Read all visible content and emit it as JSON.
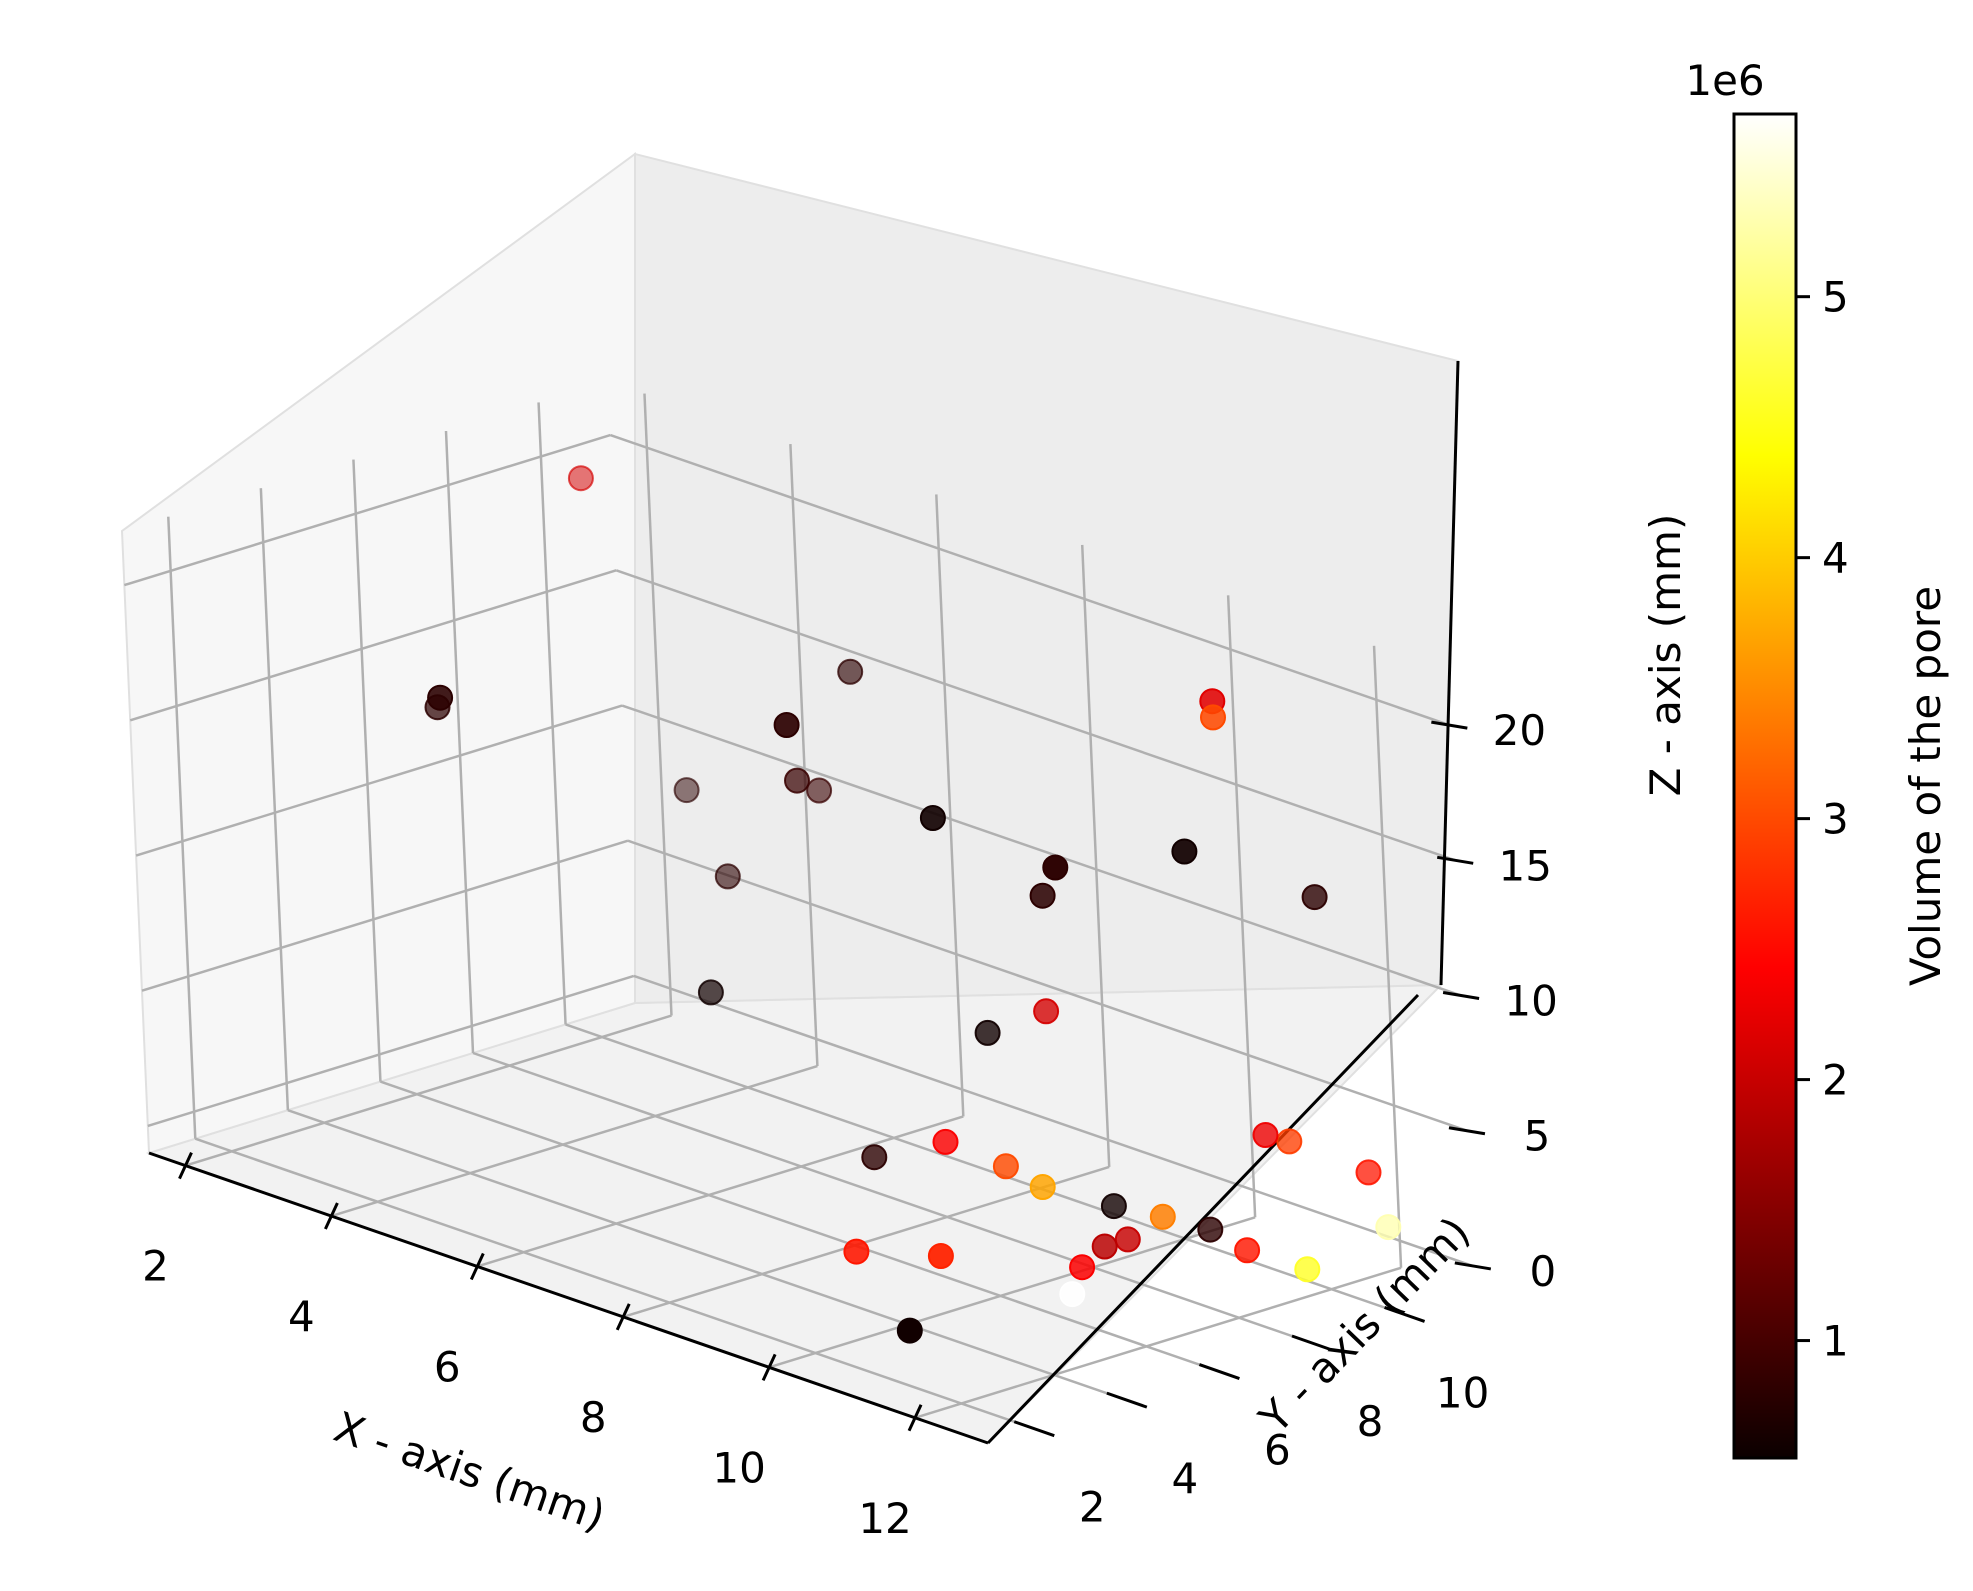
{
  "chart_data": {
    "type": "scatter",
    "projection": "3d",
    "xlabel": "X - axis (mm)",
    "ylabel": "Y - axis (mm)",
    "zlabel": "Z - axis (mm)",
    "xticks": [
      "2",
      "4",
      "6",
      "8",
      "10",
      "12"
    ],
    "yticks": [
      "2",
      "4",
      "6",
      "8",
      "10"
    ],
    "zticks": [
      "0",
      "5",
      "10",
      "15",
      "20"
    ],
    "xlim": [
      1.5,
      13
    ],
    "ylim": [
      1,
      11.5
    ],
    "zlim": [
      -1,
      22
    ],
    "grid": true,
    "colormap": "hot",
    "colorbar": {
      "label": "Volume of the pore",
      "offset_text": "1e6",
      "ticks": [
        "1",
        "2",
        "3",
        "4",
        "5"
      ],
      "tick_values": [
        1,
        2,
        3,
        4,
        5
      ],
      "range": [
        0.55,
        5.7
      ],
      "placement": "right"
    },
    "points": [
      {
        "x": 2.5,
        "y": 9.3,
        "z": 20.5,
        "v": 2.1
      },
      {
        "x": 3.0,
        "y": 10.5,
        "z": 8.8,
        "v": 0.8
      },
      {
        "x": 5.3,
        "y": 9.8,
        "z": 11.3,
        "v": 0.9
      },
      {
        "x": 4.5,
        "y": 9.0,
        "z": 7.8,
        "v": 0.8
      },
      {
        "x": 5.5,
        "y": 7.0,
        "z": 5.5,
        "v": 0.6
      },
      {
        "x": 3.5,
        "y": 4.5,
        "z": 15.5,
        "v": 0.8
      },
      {
        "x": 6.0,
        "y": 9.5,
        "z": 16.5,
        "v": 0.8
      },
      {
        "x": 6.5,
        "y": 7.5,
        "z": 14.0,
        "v": 0.9
      },
      {
        "x": 5.5,
        "y": 1.5,
        "z": 19.3,
        "v": 0.8
      },
      {
        "x": 9.0,
        "y": 3.5,
        "z": 20.5,
        "v": 0.8
      },
      {
        "x": 9.0,
        "y": 7.5,
        "z": 7.0,
        "v": 0.6
      },
      {
        "x": 8.0,
        "y": 6.5,
        "z": 2.0,
        "v": 0.8
      },
      {
        "x": 10.0,
        "y": 8.5,
        "z": 1.0,
        "v": 0.6
      },
      {
        "x": 10.0,
        "y": 5.0,
        "z": 17.2,
        "v": 0.6
      },
      {
        "x": 10.5,
        "y": 6.5,
        "z": 14.0,
        "v": 0.8
      },
      {
        "x": 12.0,
        "y": 4.5,
        "z": 17.5,
        "v": 0.8
      },
      {
        "x": 12.5,
        "y": 6.5,
        "z": 17.5,
        "v": 0.6
      },
      {
        "x": 12.0,
        "y": 10.0,
        "z": 13.5,
        "v": 0.8
      },
      {
        "x": 12.0,
        "y": 8.0,
        "z": 21.8,
        "v": 2.2
      },
      {
        "x": 12.0,
        "y": 8.0,
        "z": 21.2,
        "v": 3.0
      },
      {
        "x": 9.5,
        "y": 8.0,
        "z": 8.0,
        "v": 2.1
      },
      {
        "x": 11.5,
        "y": 9.5,
        "z": 4.5,
        "v": 2.3
      },
      {
        "x": 11.5,
        "y": 10.0,
        "z": 4.0,
        "v": 2.9
      },
      {
        "x": 11.8,
        "y": 11.2,
        "z": 2.5,
        "v": 2.6
      },
      {
        "x": 9.0,
        "y": 6.5,
        "z": 3.5,
        "v": 2.4
      },
      {
        "x": 9.5,
        "y": 7.0,
        "z": 2.8,
        "v": 3.0
      },
      {
        "x": 10.0,
        "y": 7.0,
        "z": 2.5,
        "v": 3.7
      },
      {
        "x": 11.0,
        "y": 8.0,
        "z": 1.8,
        "v": 3.4
      },
      {
        "x": 11.0,
        "y": 9.0,
        "z": 0.8,
        "v": 0.8
      },
      {
        "x": 11.5,
        "y": 9.0,
        "z": 0.5,
        "v": 2.6
      },
      {
        "x": 10.5,
        "y": 8.0,
        "z": 0.5,
        "v": 2.0
      },
      {
        "x": 10.5,
        "y": 7.5,
        "z": 0.5,
        "v": 1.9
      },
      {
        "x": 10.5,
        "y": 7.0,
        "z": 0.0,
        "v": 2.4
      },
      {
        "x": 12.5,
        "y": 10.5,
        "z": 1.5,
        "v": 5.3
      },
      {
        "x": 12.0,
        "y": 9.5,
        "z": 0.0,
        "v": 4.6
      },
      {
        "x": 9.0,
        "y": 4.5,
        "z": 0.5,
        "v": 2.6
      },
      {
        "x": 10.5,
        "y": 4.0,
        "z": 2.0,
        "v": 2.7
      },
      {
        "x": 11.0,
        "y": 6.0,
        "z": 0.0,
        "v": 5.7
      },
      {
        "x": 11.0,
        "y": 2.5,
        "z": 0.5,
        "v": 0.6
      }
    ]
  }
}
